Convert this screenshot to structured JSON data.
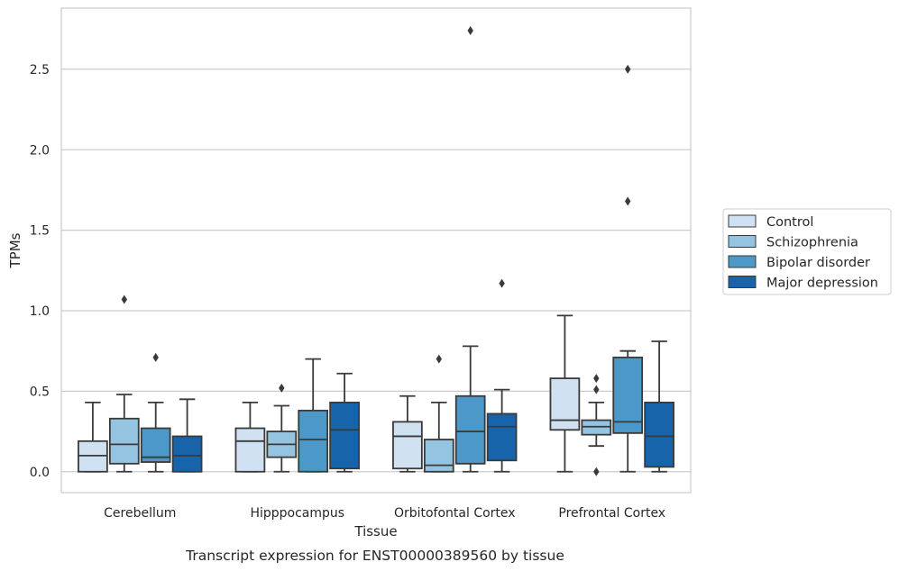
{
  "chart_data": {
    "type": "box",
    "title": "Transcript expression for ENST00000389560 by tissue",
    "xlabel": "Tissue",
    "ylabel": "TPMs",
    "ylim": [
      -0.13,
      2.88
    ],
    "yticks": [
      0.0,
      0.5,
      1.0,
      1.5,
      2.0,
      2.5
    ],
    "ytick_labels": [
      "0.0",
      "0.5",
      "1.0",
      "1.5",
      "2.0",
      "2.5"
    ],
    "grid": "horizontal",
    "legend_position": "right",
    "categories": [
      "Cerebellum",
      "Hipppocampus",
      "Orbitofontal Cortex",
      "Prefrontal Cortex"
    ],
    "series": [
      {
        "name": "Control",
        "color": "#d0e1f2",
        "boxes": [
          {
            "whisker_low": 0.0,
            "q1": 0.0,
            "median": 0.1,
            "q3": 0.19,
            "whisker_high": 0.43,
            "fliers": []
          },
          {
            "whisker_low": 0.0,
            "q1": 0.0,
            "median": 0.19,
            "q3": 0.27,
            "whisker_high": 0.43,
            "fliers": []
          },
          {
            "whisker_low": 0.0,
            "q1": 0.02,
            "median": 0.22,
            "q3": 0.31,
            "whisker_high": 0.47,
            "fliers": []
          },
          {
            "whisker_low": 0.0,
            "q1": 0.26,
            "median": 0.32,
            "q3": 0.58,
            "whisker_high": 0.97,
            "fliers": []
          }
        ]
      },
      {
        "name": "Schizophrenia",
        "color": "#94c4df",
        "boxes": [
          {
            "whisker_low": 0.0,
            "q1": 0.05,
            "median": 0.17,
            "q3": 0.33,
            "whisker_high": 0.48,
            "fliers": [
              1.07
            ]
          },
          {
            "whisker_low": 0.0,
            "q1": 0.09,
            "median": 0.17,
            "q3": 0.25,
            "whisker_high": 0.41,
            "fliers": [
              0.52
            ]
          },
          {
            "whisker_low": 0.0,
            "q1": 0.0,
            "median": 0.04,
            "q3": 0.2,
            "whisker_high": 0.43,
            "fliers": [
              0.7
            ]
          },
          {
            "whisker_low": 0.16,
            "q1": 0.23,
            "median": 0.28,
            "q3": 0.32,
            "whisker_high": 0.43,
            "fliers": [
              0.51,
              0.58,
              0.0
            ]
          }
        ]
      },
      {
        "name": "Bipolar disorder",
        "color": "#4b98c9",
        "boxes": [
          {
            "whisker_low": 0.0,
            "q1": 0.06,
            "median": 0.09,
            "q3": 0.27,
            "whisker_high": 0.43,
            "fliers": [
              0.71
            ]
          },
          {
            "whisker_low": 0.0,
            "q1": 0.0,
            "median": 0.2,
            "q3": 0.38,
            "whisker_high": 0.7,
            "fliers": []
          },
          {
            "whisker_low": 0.0,
            "q1": 0.05,
            "median": 0.25,
            "q3": 0.47,
            "whisker_high": 0.78,
            "fliers": [
              2.74
            ]
          },
          {
            "whisker_low": 0.0,
            "q1": 0.24,
            "median": 0.31,
            "q3": 0.71,
            "whisker_high": 0.75,
            "fliers": [
              2.5,
              1.68
            ]
          }
        ]
      },
      {
        "name": "Major depression",
        "color": "#1764ab",
        "boxes": [
          {
            "whisker_low": 0.0,
            "q1": 0.0,
            "median": 0.1,
            "q3": 0.22,
            "whisker_high": 0.45,
            "fliers": []
          },
          {
            "whisker_low": 0.0,
            "q1": 0.02,
            "median": 0.26,
            "q3": 0.43,
            "whisker_high": 0.61,
            "fliers": []
          },
          {
            "whisker_low": 0.0,
            "q1": 0.07,
            "median": 0.28,
            "q3": 0.36,
            "whisker_high": 0.51,
            "fliers": [
              1.17
            ]
          },
          {
            "whisker_low": 0.0,
            "q1": 0.03,
            "median": 0.22,
            "q3": 0.43,
            "whisker_high": 0.81,
            "fliers": []
          }
        ]
      }
    ]
  }
}
